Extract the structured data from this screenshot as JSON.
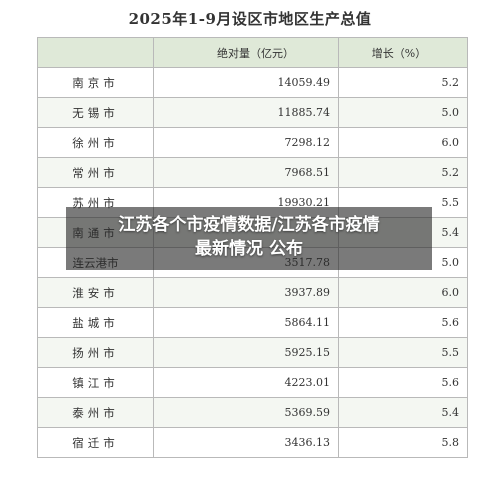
{
  "title": "2025年1-9月设区市地区生产总值",
  "table": {
    "headers": [
      "",
      "绝对量（亿元）",
      "增长（%）"
    ],
    "rows": [
      {
        "city": "南京市",
        "value": "14059.49",
        "growth": "5.2"
      },
      {
        "city": "无锡市",
        "value": "11885.74",
        "growth": "5.0"
      },
      {
        "city": "徐州市",
        "value": "7298.12",
        "growth": "6.0"
      },
      {
        "city": "常州市",
        "value": "7968.51",
        "growth": "5.2"
      },
      {
        "city": "苏州市",
        "value": "19930.21",
        "growth": "5.5"
      },
      {
        "city": "南通市",
        "value": "",
        "growth": "5.4"
      },
      {
        "city": "连云港市",
        "value": "3517.78",
        "growth": "5.0"
      },
      {
        "city": "淮安市",
        "value": "3937.89",
        "growth": "6.0"
      },
      {
        "city": "盐城市",
        "value": "5864.11",
        "growth": "5.6"
      },
      {
        "city": "扬州市",
        "value": "5925.15",
        "growth": "5.5"
      },
      {
        "city": "镇江市",
        "value": "4223.01",
        "growth": "5.6"
      },
      {
        "city": "泰州市",
        "value": "5369.59",
        "growth": "5.4"
      },
      {
        "city": "宿迁市",
        "value": "3436.13",
        "growth": "5.8"
      }
    ]
  },
  "overlay": {
    "line1": "江苏各个市疫情数据/江苏各市疫情",
    "line2": "最新情况 公布"
  },
  "colors": {
    "header_bg": "#dfe9d8",
    "alt_row_bg": "#f4f7f2",
    "border": "#b9b9b9",
    "overlay_bg": "rgba(40,40,40,0.62)"
  }
}
